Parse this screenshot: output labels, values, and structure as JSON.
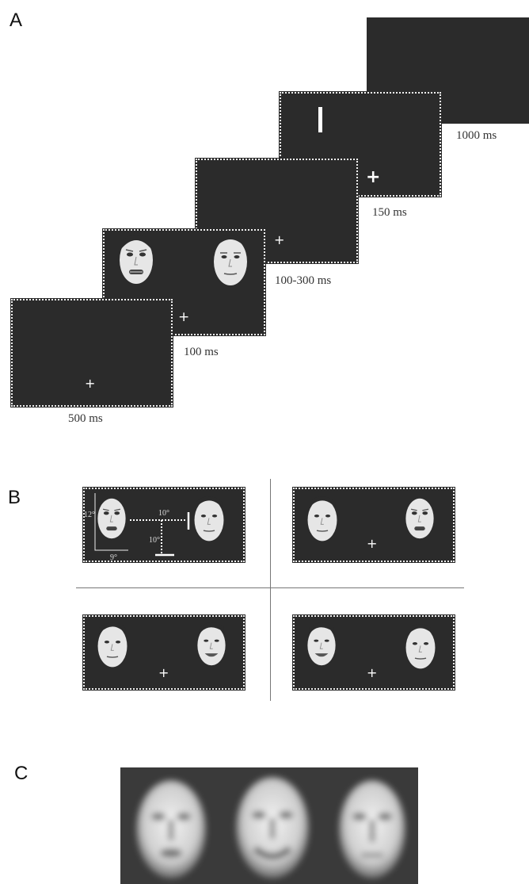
{
  "panels": {
    "a_label": "A",
    "b_label": "B",
    "c_label": "C"
  },
  "panel_a": {
    "frames": [
      {
        "duration": "500 ms",
        "content": "fixation cross"
      },
      {
        "duration": "100 ms",
        "content": "fearful face left, neutral face right, fixation cross"
      },
      {
        "duration": "100-300 ms",
        "content": "fixation cross"
      },
      {
        "duration": "150 ms",
        "content": "vertical bar target, fixation cross"
      },
      {
        "duration": "1000 ms",
        "content": "blank"
      }
    ],
    "fixation_symbol": "+"
  },
  "panel_b": {
    "dimension_labels": {
      "face_height": "12°",
      "face_width": "9°",
      "horizontal_offset": "10°",
      "vertical_offset": "10°"
    },
    "fixation_symbol": "+"
  },
  "colors": {
    "screen_background": "#2b2b2b",
    "frame_dots": "#f0f0f0",
    "face_skin": "#e6e6e6",
    "panel_c_background": "#3a3a3a"
  }
}
